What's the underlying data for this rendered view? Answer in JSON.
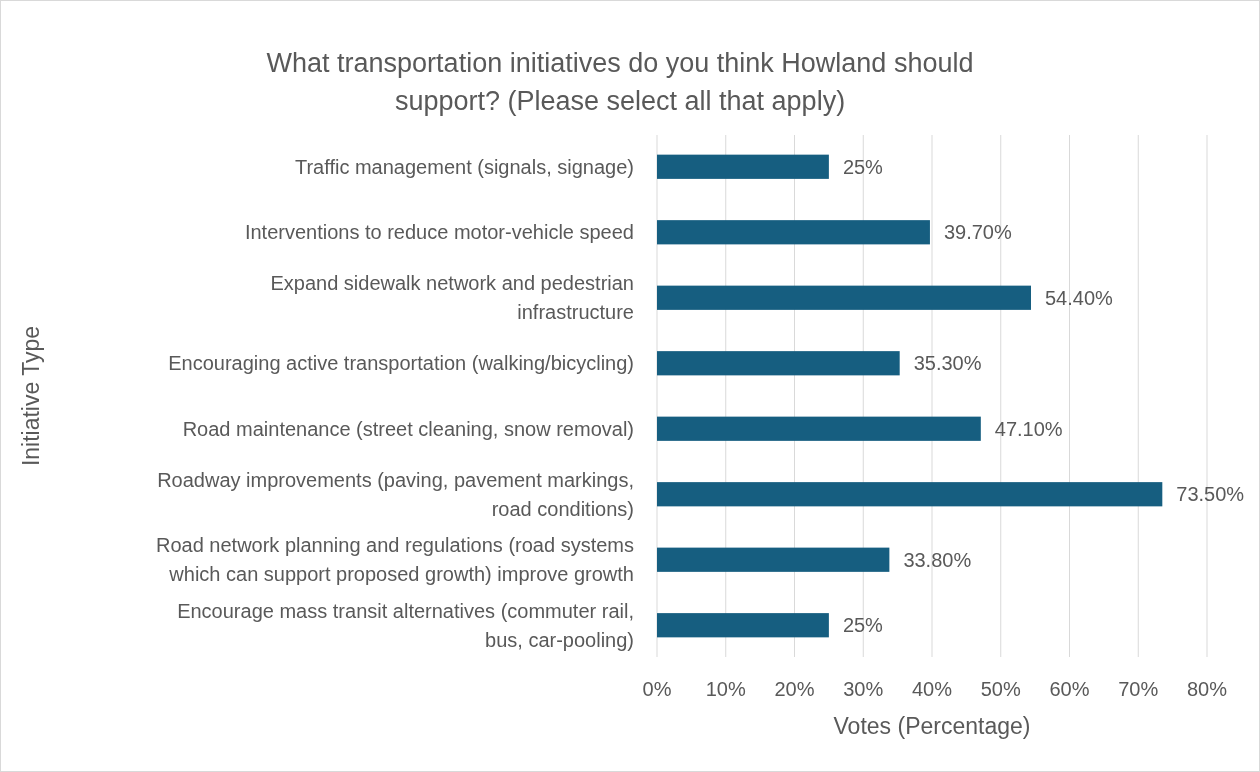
{
  "chart_data": {
    "type": "bar",
    "orientation": "horizontal",
    "title": "What transportation initiatives do you think Howland should support? (Please select all that apply)",
    "xlabel": "Votes (Percentage)",
    "ylabel": "Initiative Type",
    "categories": [
      "Traffic management (signals, signage)",
      "Interventions to reduce motor-vehicle speed",
      "Expand sidewalk network and pedestrian infrastructure",
      "Encouraging active transportation (walking/bicycling)",
      "Road maintenance (street cleaning, snow removal)",
      "Roadway improvements (paving, pavement markings, road conditions)",
      "Road network planning and regulations (road systems which can support proposed growth) improve growth",
      "Encourage mass transit alternatives (commuter rail, bus, car-pooling)"
    ],
    "values": [
      25,
      39.7,
      54.4,
      35.3,
      47.1,
      73.5,
      33.8,
      25
    ],
    "value_labels": [
      "25%",
      "39.70%",
      "54.40%",
      "35.30%",
      "47.10%",
      "73.50%",
      "33.80%",
      "25%"
    ],
    "color": "#165e80",
    "xlim": [
      0,
      80
    ],
    "xticks": [
      {
        "value": 0,
        "label": "0%"
      },
      {
        "value": 10,
        "label": "10%"
      },
      {
        "value": 20,
        "label": "20%"
      },
      {
        "value": 30,
        "label": "30%"
      },
      {
        "value": 40,
        "label": "40%"
      },
      {
        "value": 50,
        "label": "50%"
      },
      {
        "value": 60,
        "label": "60%"
      },
      {
        "value": 70,
        "label": "70%"
      },
      {
        "value": 80,
        "label": "80%"
      }
    ],
    "grid": "x"
  }
}
